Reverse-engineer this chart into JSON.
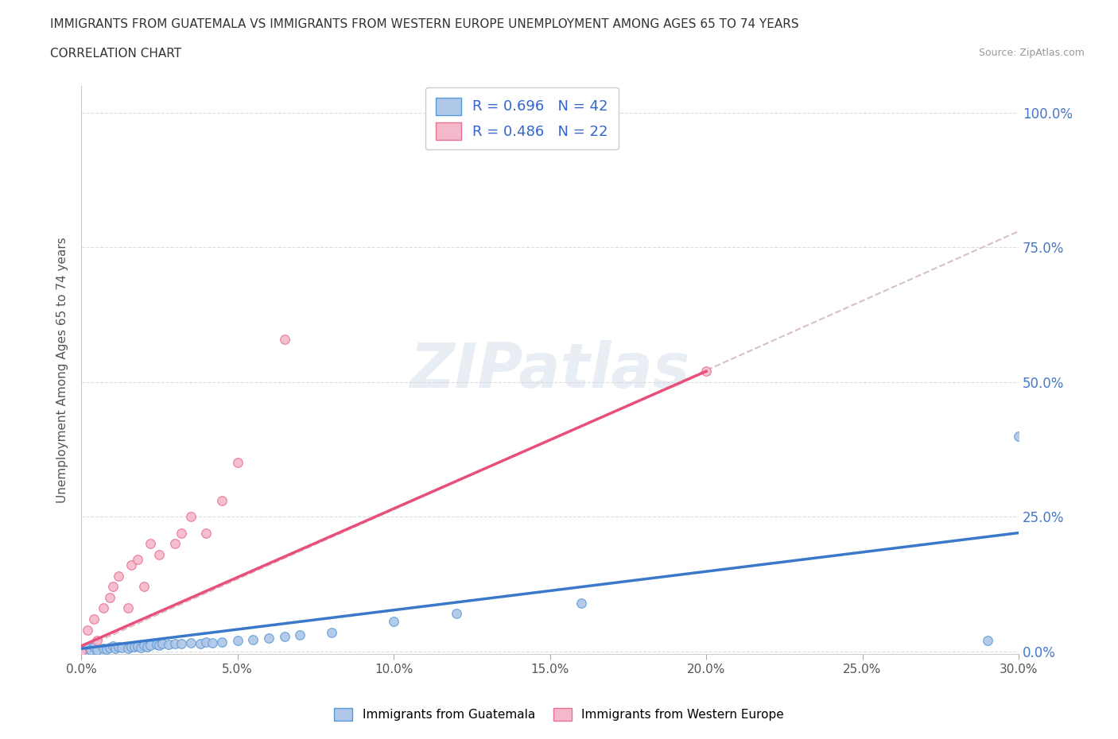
{
  "title_line1": "IMMIGRANTS FROM GUATEMALA VS IMMIGRANTS FROM WESTERN EUROPE UNEMPLOYMENT AMONG AGES 65 TO 74 YEARS",
  "title_line2": "CORRELATION CHART",
  "source": "Source: ZipAtlas.com",
  "ylabel": "Unemployment Among Ages 65 to 74 years",
  "xlim": [
    0.0,
    0.3
  ],
  "ylim": [
    -0.005,
    1.05
  ],
  "xtick_vals": [
    0.0,
    0.05,
    0.1,
    0.15,
    0.2,
    0.25,
    0.3
  ],
  "xtick_labels": [
    "0.0%",
    "5.0%",
    "10.0%",
    "15.0%",
    "20.0%",
    "25.0%",
    "30.0%"
  ],
  "ytick_vals": [
    0.0,
    0.25,
    0.5,
    0.75,
    1.0
  ],
  "ytick_labels_right": [
    "0.0%",
    "25.0%",
    "50.0%",
    "75.0%",
    "100.0%"
  ],
  "legend_text_color": "#3366cc",
  "guatemala_color": "#aec6e8",
  "western_europe_color": "#f4b8cb",
  "guatemala_edge_color": "#5b9bd5",
  "western_europe_edge_color": "#e87090",
  "guatemala_line_color": "#3a78c9",
  "western_europe_line_color": "#e8507a",
  "dashed_line_color": "#d8c0c8",
  "watermark": "ZIPatlas",
  "guatemala_scatter_x": [
    0.0,
    0.002,
    0.003,
    0.004,
    0.005,
    0.007,
    0.008,
    0.009,
    0.01,
    0.011,
    0.012,
    0.013,
    0.015,
    0.016,
    0.017,
    0.018,
    0.019,
    0.02,
    0.021,
    0.022,
    0.024,
    0.025,
    0.026,
    0.028,
    0.03,
    0.032,
    0.035,
    0.038,
    0.04,
    0.042,
    0.045,
    0.05,
    0.055,
    0.06,
    0.065,
    0.07,
    0.08,
    0.1,
    0.12,
    0.16,
    0.29,
    0.3
  ],
  "guatemala_scatter_y": [
    0.0,
    0.005,
    0.002,
    0.008,
    0.003,
    0.006,
    0.004,
    0.007,
    0.01,
    0.005,
    0.008,
    0.007,
    0.006,
    0.009,
    0.008,
    0.01,
    0.007,
    0.012,
    0.009,
    0.011,
    0.013,
    0.012,
    0.014,
    0.013,
    0.015,
    0.014,
    0.016,
    0.015,
    0.017,
    0.016,
    0.018,
    0.02,
    0.022,
    0.025,
    0.028,
    0.03,
    0.035,
    0.055,
    0.07,
    0.09,
    0.02,
    0.4
  ],
  "western_europe_scatter_x": [
    0.0,
    0.002,
    0.004,
    0.005,
    0.007,
    0.009,
    0.01,
    0.012,
    0.015,
    0.016,
    0.018,
    0.02,
    0.022,
    0.025,
    0.03,
    0.032,
    0.035,
    0.04,
    0.045,
    0.05,
    0.065,
    0.2
  ],
  "western_europe_scatter_y": [
    0.0,
    0.04,
    0.06,
    0.02,
    0.08,
    0.1,
    0.12,
    0.14,
    0.08,
    0.16,
    0.17,
    0.12,
    0.2,
    0.18,
    0.2,
    0.22,
    0.25,
    0.22,
    0.28,
    0.35,
    0.58,
    0.52
  ],
  "guatemala_trend_x": [
    0.0,
    0.3
  ],
  "guatemala_trend_y": [
    0.005,
    0.22
  ],
  "western_europe_trend_x": [
    0.0,
    0.2
  ],
  "western_europe_trend_y": [
    0.01,
    0.52
  ],
  "dashed_trend_x": [
    0.0,
    0.3
  ],
  "dashed_trend_y": [
    0.005,
    0.78
  ]
}
